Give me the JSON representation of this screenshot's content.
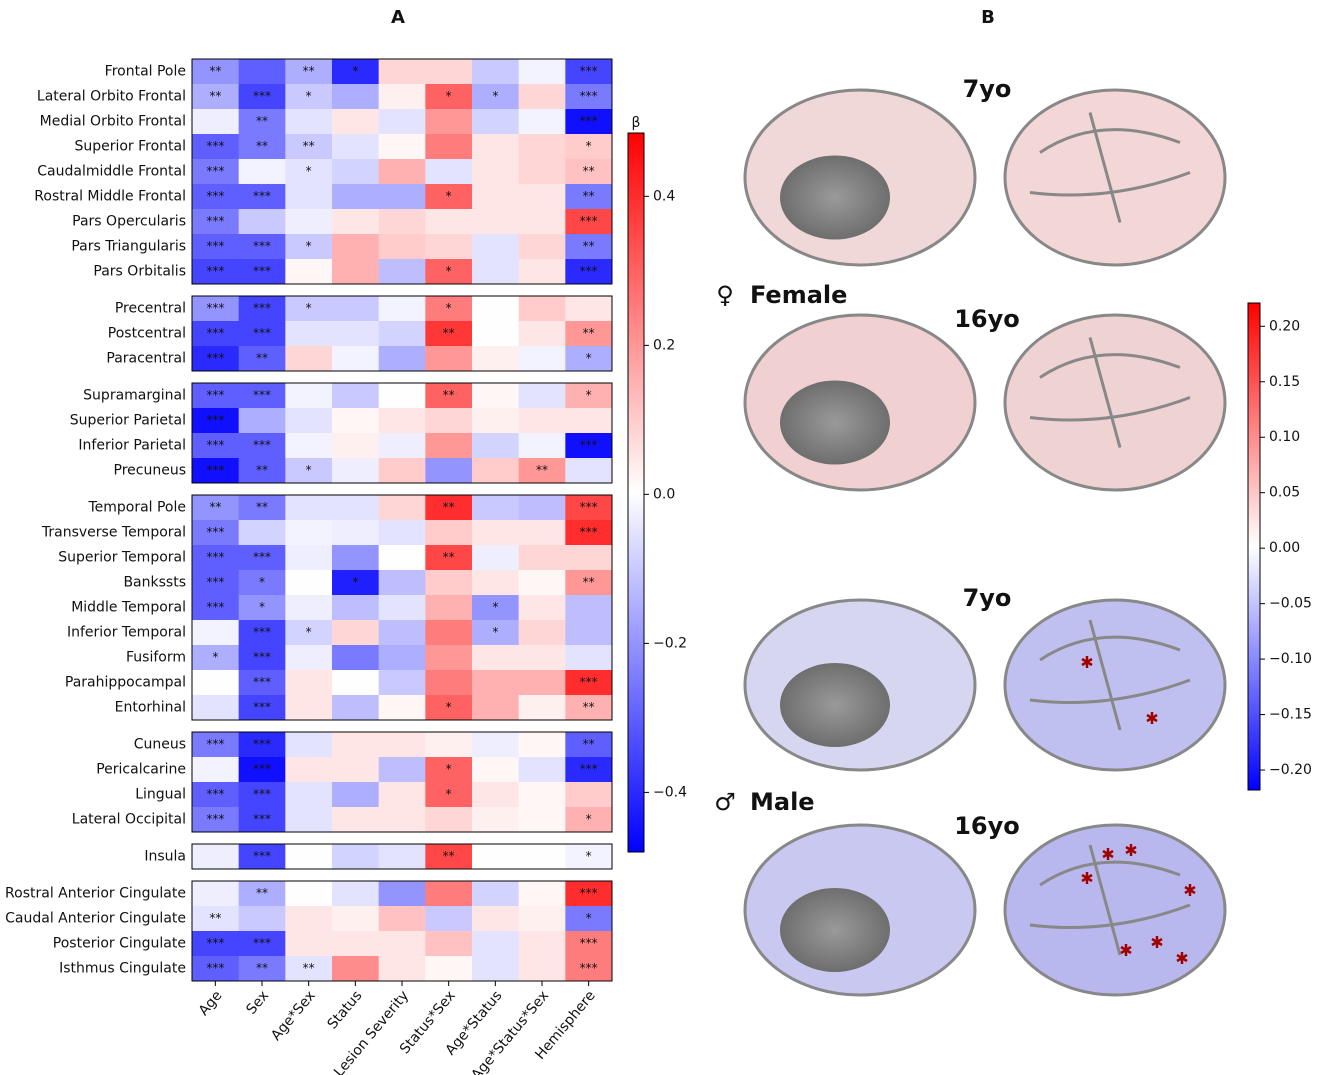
{
  "chart_data": [
    {
      "type": "heatmap",
      "panel": "A",
      "columns": [
        "Age",
        "Sex",
        "Age*Sex",
        "Status",
        "Lesion Severity",
        "Status*Sex",
        "Age*Status",
        "Age*Status*Sex",
        "Hemisphere"
      ],
      "cmap": [
        "#0000ff",
        "#ffffff",
        "#ff0000"
      ],
      "colorbar_label": "β",
      "zlim": [
        -0.48,
        0.485
      ],
      "zticks": [
        0.4,
        0.2,
        {
          "value": 0,
          "label": "0.0"
        },
        {
          "value": -0.2,
          "label": "−0.2"
        },
        {
          "value": -0.4,
          "label": "−0.4"
        }
      ],
      "row_groups": [
        {
          "rows": [
            "Frontal Pole",
            "Lateral Orbito Frontal",
            "Medial Orbito Frontal",
            "Superior Frontal",
            "Caudalmiddle Frontal",
            "Rostral Middle Frontal",
            "Pars Opercularis",
            "Pars Triangularis",
            "Pars Orbitalis"
          ],
          "values": [
            [
              -0.2,
              -0.3,
              -0.15,
              -0.4,
              0.08,
              0.08,
              -0.1,
              -0.02,
              -0.35
            ],
            [
              -0.15,
              -0.35,
              -0.1,
              -0.15,
              0.03,
              0.3,
              -0.15,
              0.08,
              -0.25
            ],
            [
              -0.03,
              -0.25,
              -0.05,
              0.05,
              -0.05,
              0.2,
              -0.08,
              -0.02,
              -0.45
            ],
            [
              -0.3,
              -0.25,
              -0.1,
              -0.05,
              0.02,
              0.25,
              0.05,
              0.08,
              0.1
            ],
            [
              -0.25,
              -0.02,
              -0.05,
              -0.08,
              0.15,
              -0.05,
              0.05,
              0.08,
              0.12
            ],
            [
              -0.3,
              -0.3,
              -0.05,
              -0.15,
              -0.15,
              0.3,
              0.05,
              0.05,
              -0.25
            ],
            [
              -0.25,
              -0.1,
              -0.03,
              0.05,
              0.08,
              0.05,
              0.05,
              0.05,
              0.35
            ],
            [
              -0.3,
              -0.3,
              -0.1,
              0.15,
              0.1,
              0.08,
              -0.05,
              0.08,
              -0.25
            ],
            [
              -0.35,
              -0.35,
              0.02,
              0.15,
              -0.12,
              0.3,
              -0.05,
              0.05,
              -0.4
            ]
          ],
          "stars": [
            [
              "**",
              null,
              "**",
              "*",
              null,
              null,
              null,
              null,
              "***"
            ],
            [
              "**",
              "***",
              "*",
              null,
              null,
              "*",
              "*",
              null,
              "***"
            ],
            [
              null,
              "**",
              null,
              null,
              null,
              null,
              null,
              null,
              "***"
            ],
            [
              "***",
              "**",
              "**",
              null,
              null,
              null,
              null,
              null,
              "*"
            ],
            [
              "***",
              null,
              "*",
              null,
              null,
              null,
              null,
              null,
              "**"
            ],
            [
              "***",
              "***",
              null,
              null,
              null,
              "*",
              null,
              null,
              "**"
            ],
            [
              "***",
              null,
              null,
              null,
              null,
              null,
              null,
              null,
              "***"
            ],
            [
              "***",
              "***",
              "*",
              null,
              null,
              null,
              null,
              null,
              "**"
            ],
            [
              "***",
              "***",
              null,
              null,
              null,
              "*",
              null,
              null,
              "***"
            ]
          ]
        },
        {
          "rows": [
            "Precentral",
            "Postcentral",
            "Paracentral"
          ],
          "values": [
            [
              -0.2,
              -0.35,
              -0.1,
              -0.1,
              -0.02,
              0.25,
              0,
              0.1,
              0.05
            ],
            [
              -0.35,
              -0.35,
              -0.05,
              -0.05,
              -0.08,
              0.38,
              0,
              0.05,
              0.2
            ],
            [
              -0.4,
              -0.3,
              0.08,
              -0.02,
              -0.15,
              0.2,
              0.03,
              -0.02,
              -0.15
            ]
          ],
          "stars": [
            [
              "***",
              "***",
              "*",
              null,
              null,
              "*",
              null,
              null,
              null
            ],
            [
              "***",
              "***",
              null,
              null,
              null,
              "**",
              null,
              null,
              "**"
            ],
            [
              "***",
              "**",
              null,
              null,
              null,
              null,
              null,
              null,
              "*"
            ]
          ]
        },
        {
          "rows": [
            "Supramarginal",
            "Superior Parietal",
            "Inferior Parietal",
            "Precuneus"
          ],
          "values": [
            [
              -0.3,
              -0.3,
              -0.02,
              -0.1,
              0,
              0.3,
              0.02,
              -0.05,
              0.15
            ],
            [
              -0.45,
              -0.15,
              -0.05,
              0.02,
              0.05,
              0.08,
              0.03,
              0.05,
              0.05
            ],
            [
              -0.3,
              -0.3,
              -0.02,
              0.03,
              -0.03,
              0.2,
              -0.08,
              -0.02,
              -0.45
            ],
            [
              -0.45,
              -0.3,
              -0.1,
              -0.03,
              0.1,
              -0.2,
              0.1,
              0.2,
              -0.05
            ]
          ],
          "stars": [
            [
              "***",
              "***",
              null,
              null,
              null,
              "**",
              null,
              null,
              "*"
            ],
            [
              "***",
              null,
              null,
              null,
              null,
              null,
              null,
              null,
              null
            ],
            [
              "***",
              "***",
              null,
              null,
              null,
              null,
              null,
              null,
              "***"
            ],
            [
              "***",
              "**",
              "*",
              null,
              null,
              null,
              null,
              "**",
              null
            ]
          ]
        },
        {
          "rows": [
            "Temporal Pole",
            "Transverse Temporal",
            "Superior Temporal",
            "Bankssts",
            "Middle Temporal",
            "Inferior Temporal",
            "Fusiform",
            "Parahippocampal",
            "Entorhinal"
          ],
          "values": [
            [
              -0.2,
              -0.25,
              -0.05,
              -0.05,
              0.08,
              0.4,
              -0.1,
              -0.12,
              0.35
            ],
            [
              -0.25,
              -0.08,
              -0.02,
              -0.03,
              -0.05,
              0.1,
              0.05,
              0.05,
              0.4
            ],
            [
              -0.3,
              -0.3,
              -0.03,
              -0.2,
              0,
              0.35,
              -0.03,
              0.08,
              0.08
            ],
            [
              -0.3,
              -0.25,
              0,
              -0.42,
              -0.12,
              0.1,
              0.05,
              0.02,
              0.2
            ],
            [
              -0.3,
              -0.2,
              -0.03,
              -0.12,
              -0.05,
              0.15,
              -0.2,
              0.05,
              -0.12
            ],
            [
              -0.02,
              -0.35,
              -0.08,
              0.08,
              -0.12,
              0.25,
              -0.15,
              0.08,
              -0.12
            ],
            [
              -0.15,
              -0.35,
              -0.03,
              -0.25,
              -0.15,
              0.2,
              0.05,
              0.05,
              -0.05
            ],
            [
              0,
              -0.3,
              0.05,
              0,
              -0.1,
              0.25,
              0.15,
              0.15,
              0.4
            ],
            [
              -0.05,
              -0.35,
              0.05,
              -0.12,
              0.02,
              0.3,
              0.15,
              0.03,
              0.15
            ]
          ],
          "stars": [
            [
              "**",
              "**",
              null,
              null,
              null,
              "**",
              null,
              null,
              "***"
            ],
            [
              "***",
              null,
              null,
              null,
              null,
              null,
              null,
              null,
              "***"
            ],
            [
              "***",
              "***",
              null,
              null,
              null,
              "**",
              null,
              null,
              null
            ],
            [
              "***",
              "*",
              null,
              "*",
              null,
              null,
              null,
              null,
              "**"
            ],
            [
              "***",
              "*",
              null,
              null,
              null,
              null,
              "*",
              null,
              null
            ],
            [
              null,
              "***",
              "*",
              null,
              null,
              null,
              "*",
              null,
              null
            ],
            [
              "*",
              "***",
              null,
              null,
              null,
              null,
              null,
              null,
              null
            ],
            [
              null,
              "***",
              null,
              null,
              null,
              null,
              null,
              null,
              "***"
            ],
            [
              null,
              "***",
              null,
              null,
              null,
              "*",
              null,
              null,
              "**"
            ]
          ]
        },
        {
          "rows": [
            "Cuneus",
            "Pericalcarine",
            "Lingual",
            "Lateral Occipital"
          ],
          "values": [
            [
              -0.25,
              -0.4,
              -0.05,
              0.05,
              0.05,
              0.03,
              -0.03,
              0.02,
              -0.3
            ],
            [
              -0.02,
              -0.45,
              0.05,
              0.05,
              -0.12,
              0.3,
              0.02,
              -0.05,
              -0.4
            ],
            [
              -0.3,
              -0.35,
              -0.05,
              -0.15,
              0.05,
              0.3,
              0.05,
              0.02,
              0.1
            ],
            [
              -0.25,
              -0.35,
              -0.05,
              0.05,
              0.05,
              0.08,
              0.03,
              0.02,
              0.15
            ]
          ],
          "stars": [
            [
              "***",
              "***",
              null,
              null,
              null,
              null,
              null,
              null,
              "**"
            ],
            [
              null,
              "***",
              null,
              null,
              null,
              "*",
              null,
              null,
              "***"
            ],
            [
              "***",
              "***",
              null,
              null,
              null,
              "*",
              null,
              null,
              null
            ],
            [
              "***",
              "***",
              null,
              null,
              null,
              null,
              null,
              null,
              "*"
            ]
          ]
        },
        {
          "rows": [
            "Insula"
          ],
          "values": [
            [
              -0.03,
              -0.35,
              0,
              -0.08,
              -0.05,
              0.35,
              0,
              0,
              -0.02
            ]
          ],
          "stars": [
            [
              null,
              "***",
              null,
              null,
              null,
              "**",
              null,
              null,
              "*"
            ]
          ]
        },
        {
          "rows": [
            "Rostral Anterior Cingulate",
            "Caudal Anterior Cingulate",
            "Posterior Cingulate",
            "Isthmus Cingulate"
          ],
          "values": [
            [
              -0.03,
              -0.15,
              0,
              -0.05,
              -0.2,
              0.25,
              -0.08,
              0.02,
              0.4
            ],
            [
              -0.05,
              -0.1,
              0.05,
              0.03,
              0.12,
              -0.1,
              0.05,
              0.03,
              -0.25
            ],
            [
              -0.35,
              -0.35,
              0.05,
              0.05,
              0.05,
              0.12,
              -0.05,
              0.05,
              0.25
            ],
            [
              -0.3,
              -0.25,
              -0.05,
              0.22,
              0.05,
              0.02,
              -0.05,
              0.05,
              0.25
            ]
          ],
          "stars": [
            [
              null,
              "**",
              null,
              null,
              null,
              null,
              null,
              null,
              "***"
            ],
            [
              "**",
              null,
              null,
              null,
              null,
              null,
              null,
              null,
              "*"
            ],
            [
              "***",
              "***",
              null,
              null,
              null,
              null,
              null,
              null,
              "***"
            ],
            [
              "***",
              "**",
              "**",
              null,
              null,
              null,
              null,
              null,
              "***"
            ]
          ]
        }
      ]
    },
    {
      "type": "brain-map",
      "panel": "B",
      "cmap": [
        "#0000ff",
        "#ffffff",
        "#ff0000"
      ],
      "zlim": [
        -0.218,
        0.221
      ],
      "zticks": [
        {
          "value": 0.2,
          "label": "0.20"
        },
        {
          "value": 0.15,
          "label": "0.15"
        },
        {
          "value": 0.1,
          "label": "0.10"
        },
        {
          "value": 0.05,
          "label": "0.05"
        },
        {
          "value": 0,
          "label": "0.00"
        },
        {
          "value": -0.05,
          "label": "−0.05"
        },
        {
          "value": -0.1,
          "label": "−0.10"
        },
        {
          "value": -0.15,
          "label": "−0.15"
        },
        {
          "value": -0.2,
          "label": "−0.20"
        }
      ],
      "groups": [
        {
          "symbol": "♀",
          "label": "Female",
          "ages": [
            "7yo",
            "16yo"
          ]
        },
        {
          "symbol": "♂",
          "label": "Male",
          "ages": [
            "7yo",
            "16yo"
          ]
        }
      ]
    }
  ]
}
